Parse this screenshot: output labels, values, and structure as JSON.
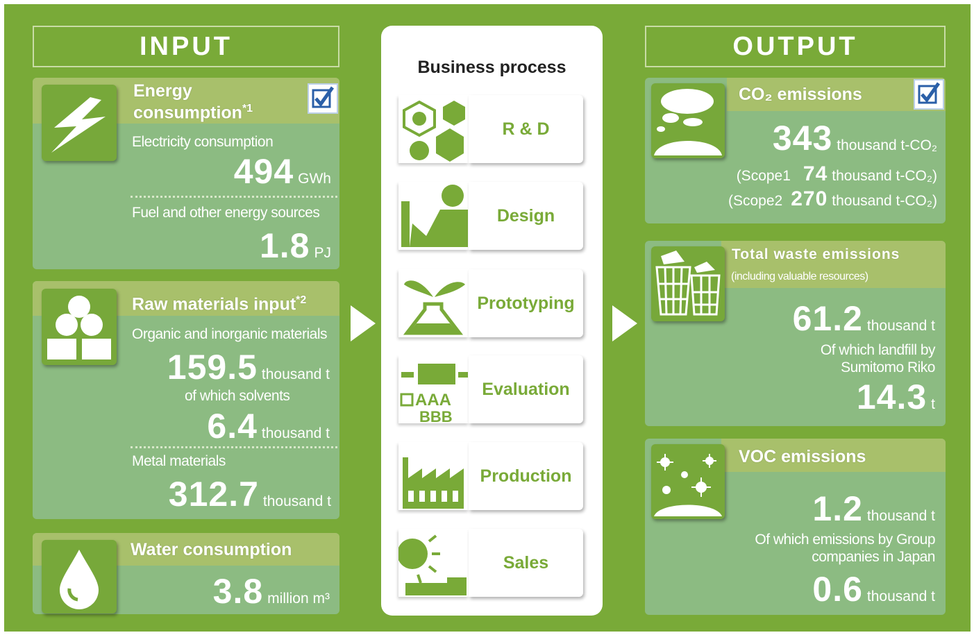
{
  "input": {
    "heading": "INPUT",
    "boxes": [
      {
        "title": "Energy consumption",
        "note": "*1",
        "items": [
          {
            "label": "Electricity consumption",
            "value": 494,
            "unit": "GWh"
          },
          {
            "label": "Fuel and other energy sources",
            "value": 1.8,
            "unit": "PJ"
          }
        ]
      },
      {
        "title": "Raw materials input",
        "note": "*2",
        "items": [
          {
            "label": "Organic and inorganic materials",
            "value": 159.5,
            "unit": "thousand t"
          },
          {
            "label": "of which solvents",
            "value": 6.4,
            "unit": "thousand t"
          },
          {
            "label": "Metal materials",
            "value": 312.7,
            "unit": "thousand t"
          }
        ]
      },
      {
        "title": "Water consumption",
        "items": [
          {
            "value": 3.8,
            "unit": "million m³"
          }
        ]
      }
    ]
  },
  "process": {
    "title": "Business process",
    "steps": [
      "R & D",
      "Design",
      "Prototyping",
      "Evaluation",
      "Production",
      "Sales"
    ],
    "icon_text": [
      "AAA",
      "BBB"
    ]
  },
  "output": {
    "heading": "OUTPUT",
    "boxes": [
      {
        "title": "CO₂ emissions",
        "items": [
          {
            "value": 343,
            "unit": "thousand t-CO₂"
          },
          {
            "label": "(Scope1",
            "value": 74,
            "unit": "thousand t-CO₂)"
          },
          {
            "label": "(Scope2",
            "value": 270,
            "unit": "thousand t-CO₂)"
          }
        ]
      },
      {
        "title": "Total waste emissions",
        "subtitle": "(including valuable resources)",
        "items": [
          {
            "value": 61.2,
            "unit": "thousand t"
          },
          {
            "label": "Of which landfill by Sumitomo Riko",
            "value": 14.3,
            "unit": "t"
          }
        ]
      },
      {
        "title": "VOC emissions",
        "items": [
          {
            "value": 1.2,
            "unit": "thousand t"
          },
          {
            "label": "Of which emissions by Group companies in Japan",
            "value": 0.6,
            "unit": "thousand t"
          }
        ]
      }
    ]
  }
}
